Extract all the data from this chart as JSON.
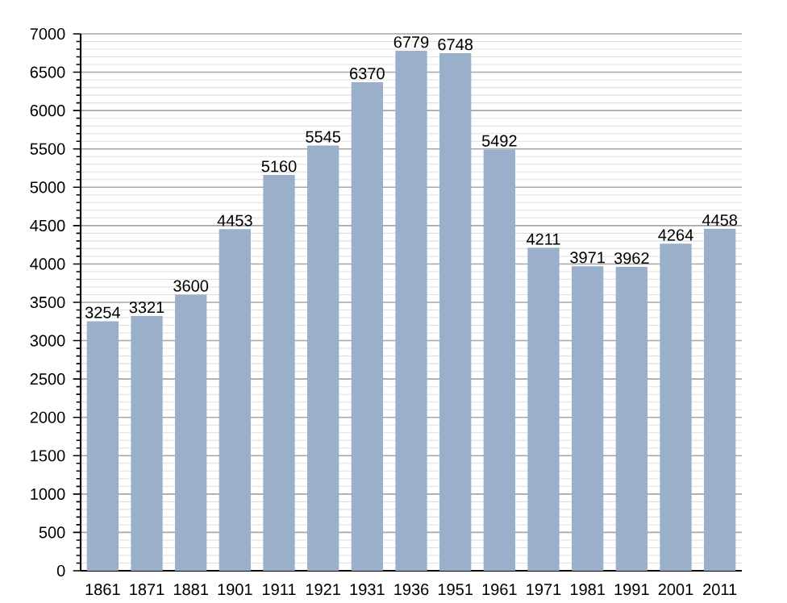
{
  "chart_data": {
    "type": "bar",
    "categories": [
      "1861",
      "1871",
      "1881",
      "1901",
      "1911",
      "1921",
      "1931",
      "1936",
      "1951",
      "1961",
      "1971",
      "1981",
      "1991",
      "2001",
      "2011"
    ],
    "values": [
      3254,
      3321,
      3600,
      4453,
      5160,
      5545,
      6370,
      6779,
      6748,
      5492,
      4211,
      3971,
      3962,
      4264,
      4458
    ],
    "color": "#9ab0ca",
    "ylim": [
      0,
      7000
    ],
    "yticks": [
      0,
      500,
      1000,
      1500,
      2000,
      2500,
      3000,
      3500,
      4000,
      4500,
      5000,
      5500,
      6000,
      6500,
      7000
    ],
    "grid": "y",
    "data_labels": true
  }
}
